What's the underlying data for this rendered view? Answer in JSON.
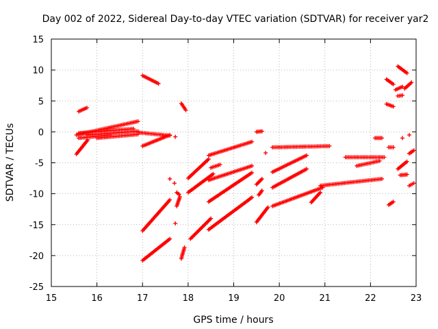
{
  "chart_data": {
    "type": "scatter",
    "title": "Day 002 of 2022, Sidereal Day-to-day VTEC variation (SDTVAR) for receiver yar2",
    "xlabel": "GPS time / hours",
    "ylabel": "SDTVAR / TECUs",
    "xlim": [
      15,
      23
    ],
    "ylim": [
      -25,
      15
    ],
    "xticks": [
      15,
      16,
      17,
      18,
      19,
      20,
      21,
      22,
      23
    ],
    "yticks": [
      -25,
      -20,
      -15,
      -10,
      -5,
      0,
      5,
      10,
      15
    ],
    "xtick_labels": [
      "15",
      "16",
      "17",
      "18",
      "19",
      "20",
      "21",
      "22",
      "23"
    ],
    "ytick_labels": [
      "-25",
      "-20",
      "-15",
      "-10",
      "-5",
      "0",
      "5",
      "10",
      "15"
    ],
    "grid": true,
    "marker": "+",
    "color": "#ff0000",
    "segments": [
      {
        "from": [
          15.6,
          3.3
        ],
        "to": [
          15.78,
          3.9
        ]
      },
      {
        "from": [
          15.55,
          -3.6
        ],
        "to": [
          15.8,
          -1.3
        ]
      },
      {
        "from": [
          15.55,
          -0.5
        ],
        "to": [
          16.9,
          1.7
        ]
      },
      {
        "from": [
          15.6,
          -0.2
        ],
        "to": [
          16.8,
          0.5
        ]
      },
      {
        "from": [
          15.6,
          -1.0
        ],
        "to": [
          16.3,
          -0.5
        ]
      },
      {
        "from": [
          15.8,
          -0.5
        ],
        "to": [
          16.9,
          0.1
        ]
      },
      {
        "from": [
          16.0,
          -1.0
        ],
        "to": [
          16.9,
          -0.4
        ]
      },
      {
        "from": [
          17.0,
          -2.3
        ],
        "to": [
          17.6,
          -0.5
        ]
      },
      {
        "from": [
          16.9,
          -0.1
        ],
        "to": [
          17.6,
          -0.6
        ]
      },
      {
        "from": [
          17.0,
          9.1
        ],
        "to": [
          17.35,
          7.8
        ]
      },
      {
        "from": [
          17.0,
          -16.0
        ],
        "to": [
          17.6,
          -11.0
        ]
      },
      {
        "from": [
          17.0,
          -20.8
        ],
        "to": [
          17.6,
          -17.3
        ]
      },
      {
        "from": [
          17.85,
          4.6
        ],
        "to": [
          17.95,
          3.5
        ]
      },
      {
        "from": [
          17.72,
          -0.8
        ],
        "to": [
          17.72,
          -0.8
        ]
      },
      {
        "from": [
          17.75,
          -9.8
        ],
        "to": [
          17.8,
          -10.1
        ]
      },
      {
        "from": [
          17.75,
          -12.0
        ],
        "to": [
          17.82,
          -10.5
        ]
      },
      {
        "from": [
          17.72,
          -14.8
        ],
        "to": [
          17.72,
          -14.8
        ]
      },
      {
        "from": [
          17.85,
          -20.5
        ],
        "to": [
          17.92,
          -18.7
        ]
      },
      {
        "from": [
          17.6,
          -7.6
        ],
        "to": [
          17.6,
          -7.6
        ]
      },
      {
        "from": [
          17.7,
          -8.3
        ],
        "to": [
          17.7,
          -8.3
        ]
      },
      {
        "from": [
          18.0,
          -7.5
        ],
        "to": [
          18.45,
          -4.4
        ]
      },
      {
        "from": [
          18.0,
          -9.8
        ],
        "to": [
          18.55,
          -6.8
        ]
      },
      {
        "from": [
          18.05,
          -17.3
        ],
        "to": [
          18.5,
          -14.0
        ]
      },
      {
        "from": [
          18.45,
          -3.8
        ],
        "to": [
          19.4,
          -1.6
        ]
      },
      {
        "from": [
          18.45,
          -7.8
        ],
        "to": [
          19.4,
          -5.5
        ]
      },
      {
        "from": [
          18.45,
          -11.3
        ],
        "to": [
          19.4,
          -6.6
        ]
      },
      {
        "from": [
          18.5,
          -5.8
        ],
        "to": [
          18.7,
          -5.3
        ]
      },
      {
        "from": [
          18.45,
          -15.8
        ],
        "to": [
          19.4,
          -10.6
        ]
      },
      {
        "from": [
          19.5,
          -14.6
        ],
        "to": [
          19.75,
          -12.2
        ]
      },
      {
        "from": [
          19.5,
          -8.5
        ],
        "to": [
          19.62,
          -7.6
        ]
      },
      {
        "from": [
          19.55,
          -10.2
        ],
        "to": [
          19.62,
          -9.5
        ]
      },
      {
        "from": [
          19.5,
          0.0
        ],
        "to": [
          19.62,
          0.1
        ]
      },
      {
        "from": [
          19.7,
          -3.4
        ],
        "to": [
          19.7,
          -3.4
        ]
      },
      {
        "from": [
          19.85,
          -6.5
        ],
        "to": [
          20.6,
          -3.8
        ]
      },
      {
        "from": [
          19.85,
          -9.0
        ],
        "to": [
          20.6,
          -6.0
        ]
      },
      {
        "from": [
          19.85,
          -12.0
        ],
        "to": [
          20.95,
          -9.0
        ]
      },
      {
        "from": [
          19.85,
          -2.5
        ],
        "to": [
          21.1,
          -2.3
        ]
      },
      {
        "from": [
          20.7,
          -11.4
        ],
        "to": [
          20.9,
          -9.8
        ]
      },
      {
        "from": [
          20.9,
          -8.7
        ],
        "to": [
          22.25,
          -7.6
        ]
      },
      {
        "from": [
          21.45,
          -4.1
        ],
        "to": [
          22.3,
          -4.1
        ]
      },
      {
        "from": [
          21.7,
          -5.5
        ],
        "to": [
          22.2,
          -4.7
        ]
      },
      {
        "from": [
          22.1,
          -1.0
        ],
        "to": [
          22.25,
          -1.0
        ]
      },
      {
        "from": [
          22.35,
          8.5
        ],
        "to": [
          22.5,
          7.7
        ]
      },
      {
        "from": [
          22.35,
          4.5
        ],
        "to": [
          22.5,
          4.1
        ]
      },
      {
        "from": [
          22.4,
          -2.5
        ],
        "to": [
          22.5,
          -2.5
        ]
      },
      {
        "from": [
          22.4,
          -11.8
        ],
        "to": [
          22.5,
          -11.3
        ]
      },
      {
        "from": [
          22.6,
          10.6
        ],
        "to": [
          22.8,
          9.5
        ]
      },
      {
        "from": [
          22.55,
          6.8
        ],
        "to": [
          22.7,
          7.3
        ]
      },
      {
        "from": [
          22.6,
          5.8
        ],
        "to": [
          22.7,
          5.9
        ]
      },
      {
        "from": [
          22.75,
          7.0
        ],
        "to": [
          22.9,
          8.0
        ]
      },
      {
        "from": [
          22.6,
          -6.0
        ],
        "to": [
          22.8,
          -4.8
        ]
      },
      {
        "from": [
          22.65,
          -7.0
        ],
        "to": [
          22.8,
          -6.9
        ]
      },
      {
        "from": [
          22.85,
          -3.5
        ],
        "to": [
          22.95,
          -3.0
        ]
      },
      {
        "from": [
          22.85,
          -8.7
        ],
        "to": [
          22.95,
          -8.3
        ]
      },
      {
        "from": [
          22.7,
          -1.0
        ],
        "to": [
          22.7,
          -1.0
        ]
      },
      {
        "from": [
          22.85,
          -0.5
        ],
        "to": [
          22.85,
          -0.5
        ]
      }
    ]
  }
}
